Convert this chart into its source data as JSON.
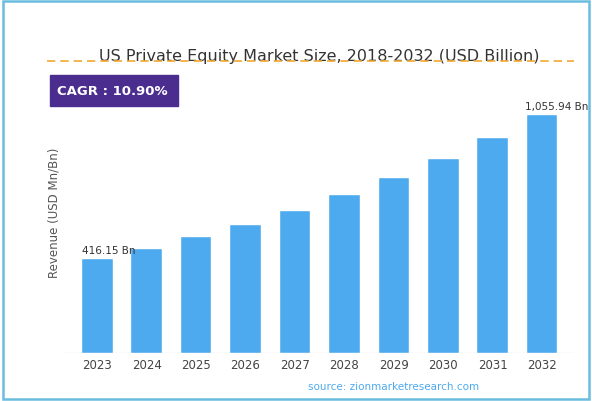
{
  "title": "US Private Equity Market Size, 2018-2032 (USD Billion)",
  "ylabel": "Revenue (USD Mn/Bn)",
  "years": [
    2023,
    2024,
    2025,
    2026,
    2027,
    2028,
    2029,
    2030,
    2031,
    2032
  ],
  "values": [
    416.15,
    461.53,
    512.04,
    568.14,
    630.38,
    699.4,
    776.0,
    860.97,
    955.21,
    1055.94
  ],
  "bar_color": "#4DAAEE",
  "bar_edge_color": "#4DAAEE",
  "first_label": "416.15 Bn",
  "last_label": "1,055.94 Bn",
  "cagr_text": "CAGR : 10.90%",
  "cagr_bg_color": "#4B2D8F",
  "cagr_text_color": "#FFFFFF",
  "dashed_line_color": "#F0A830",
  "source_text": "source: zionmarketresearch.com",
  "source_color": "#4DAAEE",
  "border_color": "#6BBDE0",
  "background_color": "#FFFFFF",
  "ylim_min": 300,
  "ylim_max": 1250,
  "title_fontsize": 11.5,
  "axis_label_fontsize": 8.5,
  "tick_fontsize": 8.5
}
